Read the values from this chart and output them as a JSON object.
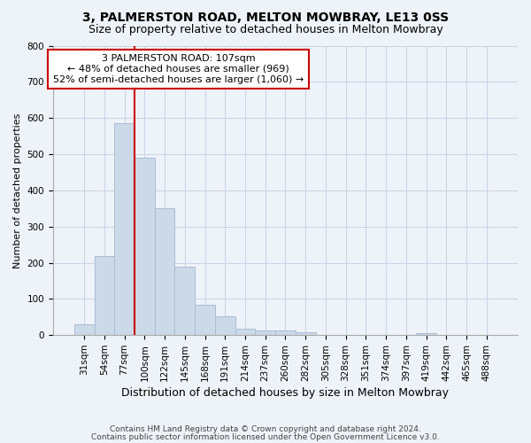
{
  "title1": "3, PALMERSTON ROAD, MELTON MOWBRAY, LE13 0SS",
  "title2": "Size of property relative to detached houses in Melton Mowbray",
  "xlabel": "Distribution of detached houses by size in Melton Mowbray",
  "ylabel": "Number of detached properties",
  "categories": [
    "31sqm",
    "54sqm",
    "77sqm",
    "100sqm",
    "122sqm",
    "145sqm",
    "168sqm",
    "191sqm",
    "214sqm",
    "237sqm",
    "260sqm",
    "282sqm",
    "305sqm",
    "328sqm",
    "351sqm",
    "374sqm",
    "397sqm",
    "419sqm",
    "442sqm",
    "465sqm",
    "488sqm"
  ],
  "values": [
    30,
    218,
    585,
    490,
    350,
    188,
    83,
    52,
    17,
    13,
    13,
    8,
    0,
    0,
    0,
    0,
    0,
    6,
    0,
    0,
    0
  ],
  "bar_color": "#ccd9e8",
  "bar_edge_color": "#aabdd4",
  "grid_color": "#c8d4e4",
  "vline_x_idx": 3,
  "vline_color": "#cc0000",
  "annotation_line1": "3 PALMERSTON ROAD: 107sqm",
  "annotation_line2": "← 48% of detached houses are smaller (969)",
  "annotation_line3": "52% of semi-detached houses are larger (1,060) →",
  "annotation_box_color": "#ffffff",
  "annotation_box_edge": "#cc0000",
  "footer1": "Contains HM Land Registry data © Crown copyright and database right 2024.",
  "footer2": "Contains public sector information licensed under the Open Government Licence v3.0.",
  "ylim": [
    0,
    800
  ],
  "yticks": [
    0,
    100,
    200,
    300,
    400,
    500,
    600,
    700,
    800
  ],
  "bg_color": "#eef2f9",
  "title1_fontsize": 10,
  "title2_fontsize": 9,
  "ylabel_fontsize": 8,
  "xlabel_fontsize": 9,
  "tick_fontsize": 7.5,
  "footer_fontsize": 6.5
}
